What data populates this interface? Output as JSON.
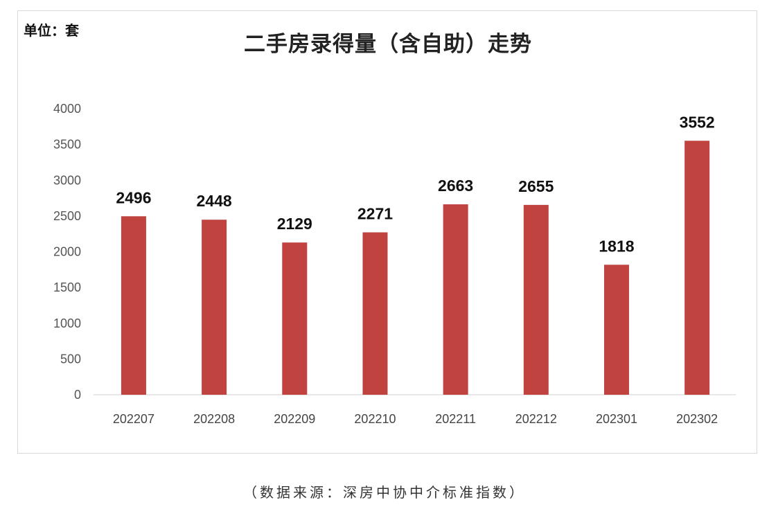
{
  "chart_data": {
    "type": "bar",
    "title": "二手房录得量（含自助）走势",
    "unit_label": "单位：套",
    "categories": [
      "202207",
      "202208",
      "202209",
      "202210",
      "202211",
      "202212",
      "202301",
      "202302"
    ],
    "values": [
      2496,
      2448,
      2129,
      2271,
      2663,
      2655,
      1818,
      3552
    ],
    "yticks": [
      0,
      500,
      1000,
      1500,
      2000,
      2500,
      3000,
      3500,
      4000
    ],
    "ylim": [
      0,
      4000
    ],
    "grid": false,
    "data_labels": true,
    "bar_color": "#c0433f",
    "source": "（数据来源：深房中协中介标准指数）"
  }
}
